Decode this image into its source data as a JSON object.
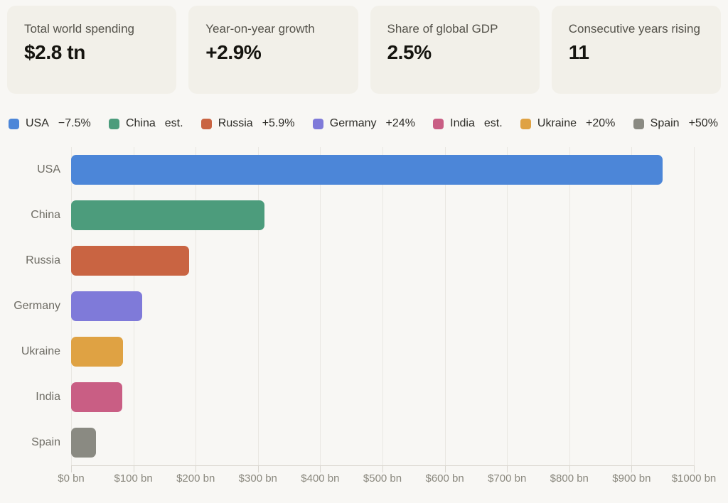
{
  "theme": {
    "page_bg": "#f8f7f4",
    "card_bg": "#f2f0e9",
    "grid_line": "#e9e7e2",
    "axis_line": "#d9d6cf",
    "card_label_text": "#54524a",
    "card_value_text": "#15140f",
    "legend_text": "#2d2c27",
    "row_label_text": "#6e6c64",
    "axis_label_text": "#8a887e"
  },
  "stat_cards": [
    {
      "label": "Total world spending",
      "value": "$2.8 tn"
    },
    {
      "label": "Year-on-year growth",
      "value": "+2.9%"
    },
    {
      "label": "Share of global GDP",
      "value": "2.5%"
    },
    {
      "label": "Consecutive years rising",
      "value": "11"
    }
  ],
  "legend": {
    "items": [
      {
        "label": "USA",
        "change": "−7.5%",
        "color": "#4c86d8"
      },
      {
        "label": "China",
        "change": "est.",
        "color": "#4c9c7c"
      },
      {
        "label": "Russia",
        "change": "+5.9%",
        "color": "#c96442"
      },
      {
        "label": "Germany",
        "change": "+24%",
        "color": "#7f7ad9"
      },
      {
        "label": "India",
        "change": "est.",
        "color": "#c95e84"
      },
      {
        "label": "Ukraine",
        "change": "+20%",
        "color": "#dfa243"
      },
      {
        "label": "Spain",
        "change": "+50%",
        "color": "#8a8a82"
      }
    ]
  },
  "chart_data": {
    "type": "bar",
    "orientation": "horizontal",
    "title": "",
    "categories": [
      "USA",
      "China",
      "Russia",
      "Germany",
      "Ukraine",
      "India",
      "Spain"
    ],
    "values": [
      950,
      310,
      190,
      114,
      83,
      82,
      40
    ],
    "colors": [
      "#4c86d8",
      "#4c9c7c",
      "#c96442",
      "#7f7ad9",
      "#dfa243",
      "#c95e84",
      "#8a8a82"
    ],
    "unit": "$ bn",
    "xlabel": "",
    "ylabel": "",
    "xlim": [
      0,
      1000
    ],
    "xtick_step": 100,
    "xtick_labels": [
      "$0 bn",
      "$100 bn",
      "$200 bn",
      "$300 bn",
      "$400 bn",
      "$500 bn",
      "$600 bn",
      "$700 bn",
      "$800 bn",
      "$900 bn",
      "$1000 bn"
    ],
    "grid": true,
    "legend_position": "top"
  }
}
